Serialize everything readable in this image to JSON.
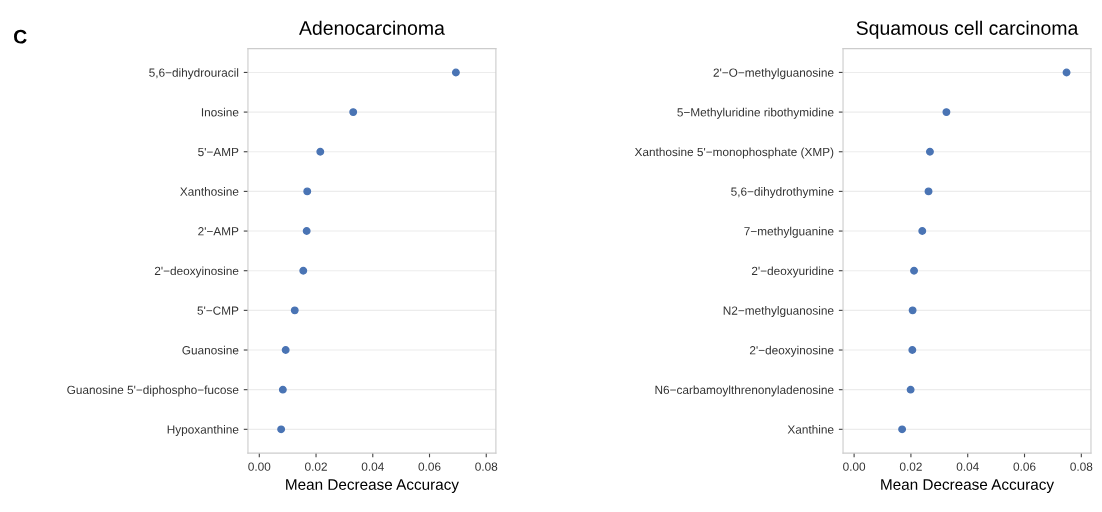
{
  "chart_data": [
    {
      "type": "scatter",
      "title": "Adenocarcinoma",
      "xlabel": "Mean Decrease Accuracy",
      "annotations": [
        "C"
      ],
      "categories": [
        "5,6−dihydrouracil",
        "Inosine",
        "5'−AMP",
        "Xanthosine",
        "2'−AMP",
        "2'−deoxyinosine",
        "5'−CMP",
        "Guanosine",
        "Guanosine 5'−diphospho−fucose",
        "Hypoxanthine"
      ],
      "orientation": "horizontal",
      "series": [
        {
          "color": "#4a74b4",
          "values": [
            0.0693,
            0.0331,
            0.0215,
            0.0169,
            0.0167,
            0.0155,
            0.0125,
            0.0093,
            0.0083,
            0.0077
          ]
        }
      ],
      "xlim": [
        -0.004,
        0.0834
      ],
      "xticks": [
        {
          "value": 0,
          "label": "0.00"
        },
        {
          "value": 0.02,
          "label": "0.02"
        },
        {
          "value": 0.04,
          "label": "0.04"
        },
        {
          "value": 0.06,
          "label": "0.06"
        },
        {
          "value": 0.08,
          "label": "0.08"
        }
      ],
      "grid": "y",
      "marker": "circle"
    },
    {
      "type": "scatter",
      "title": "Squamous cell carcinoma",
      "xlabel": "Mean Decrease Accuracy",
      "categories": [
        "2'−O−methylguanosine",
        "5−Methyluridine ribothymidine",
        "Xanthosine 5'−monophosphate (XMP)",
        "5,6−dihydrothymine",
        "7−methylguanine",
        "2'−deoxyuridine",
        "N2−methylguanosine",
        "2'−deoxyinosine",
        "N6−carbamoylthrenonyladenosine",
        "Xanthine"
      ],
      "orientation": "horizontal",
      "series": [
        {
          "color": "#4a74b4",
          "values": [
            0.0748,
            0.0325,
            0.0267,
            0.0262,
            0.024,
            0.0211,
            0.0206,
            0.0205,
            0.0199,
            0.0169
          ]
        }
      ],
      "xlim": [
        -0.0039,
        0.0834
      ],
      "xticks": [
        {
          "value": 0,
          "label": "0.00"
        },
        {
          "value": 0.02,
          "label": "0.02"
        },
        {
          "value": 0.04,
          "label": "0.04"
        },
        {
          "value": 0.06,
          "label": "0.06"
        },
        {
          "value": 0.08,
          "label": "0.08"
        }
      ],
      "grid": "y",
      "marker": "circle"
    }
  ]
}
